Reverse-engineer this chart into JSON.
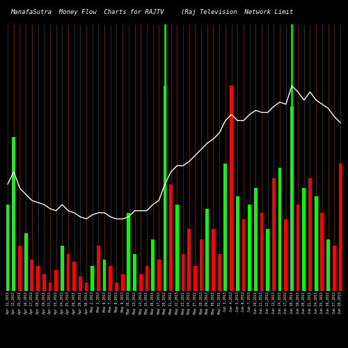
{
  "title_left": "ManafaSutra  Money Flow  Charts for RAJTV",
  "title_right": "(Raj Television  Network Limit",
  "background_color": "#000000",
  "line_color": "#ffffff",
  "green_color": "#00ff00",
  "red_color": "#ff0000",
  "orange_vline_color": "#8B4000",
  "categories": [
    "Apr 11,2013",
    "Apr 12,2013",
    "Apr 15,2013",
    "Apr 16,2013",
    "Apr 17,2013",
    "Apr 18,2013",
    "Apr 19,2013",
    "Apr 22,2013",
    "Apr 23,2013",
    "Apr 24,2013",
    "Apr 25,2013",
    "Apr 26,2013",
    "Apr 29,2013",
    "Apr 30,2013",
    "May 2,2013",
    "May 3,2013",
    "May 6,2013",
    "May 7,2013",
    "May 8,2013",
    "May 9,2013",
    "May 10,2013",
    "May 13,2013",
    "May 14,2013",
    "May 15,2013",
    "May 16,2013",
    "May 17,2013",
    "May 20,2013",
    "May 21,2013",
    "May 22,2013",
    "May 23,2013",
    "May 24,2013",
    "May 27,2013",
    "May 28,2013",
    "May 29,2013",
    "May 30,2013",
    "May 31,2013",
    "Jun 3,2013",
    "Jun 4,2013",
    "Jun 5,2013",
    "Jun 6,2013",
    "Jun 7,2013",
    "Jun 10,2013",
    "Jun 11,2013",
    "Jun 12,2013",
    "Jun 13,2013",
    "Jun 14,2013",
    "Jun 17,2013",
    "Jun 18,2013",
    "Jun 19,2013",
    "Jun 20,2013",
    "Jun 21,2013",
    "Jun 24,2013",
    "Jun 25,2013",
    "Jun 26,2013",
    "Jun 27,2013",
    "Jun 28,2013"
  ],
  "bar_values": [
    42,
    75,
    22,
    28,
    15,
    12,
    8,
    4,
    10,
    22,
    18,
    14,
    7,
    4,
    12,
    22,
    15,
    12,
    4,
    8,
    38,
    18,
    8,
    12,
    25,
    15,
    100,
    52,
    42,
    18,
    30,
    12,
    25,
    40,
    30,
    18,
    62,
    100,
    46,
    35,
    42,
    50,
    38,
    30,
    55,
    60,
    35,
    90,
    42,
    50,
    55,
    46,
    38,
    25,
    22,
    62
  ],
  "bar_colors": [
    "green",
    "green",
    "red",
    "green",
    "red",
    "red",
    "red",
    "red",
    "red",
    "green",
    "red",
    "red",
    "red",
    "red",
    "green",
    "red",
    "green",
    "red",
    "red",
    "red",
    "green",
    "green",
    "red",
    "red",
    "green",
    "red",
    "green",
    "red",
    "green",
    "red",
    "red",
    "red",
    "red",
    "green",
    "red",
    "red",
    "green",
    "red",
    "green",
    "red",
    "green",
    "green",
    "red",
    "green",
    "red",
    "green",
    "red",
    "green",
    "red",
    "green",
    "red",
    "green",
    "red",
    "green",
    "red",
    "red"
  ],
  "line_values": [
    52,
    58,
    50,
    47,
    44,
    43,
    42,
    40,
    39,
    42,
    39,
    38,
    36,
    35,
    37,
    38,
    38,
    36,
    35,
    35,
    36,
    39,
    39,
    39,
    42,
    44,
    52,
    58,
    61,
    61,
    63,
    66,
    69,
    72,
    74,
    77,
    83,
    86,
    83,
    83,
    86,
    88,
    87,
    87,
    90,
    92,
    91,
    100,
    97,
    93,
    97,
    93,
    91,
    89,
    85,
    82
  ],
  "green_vlines": [
    26,
    47
  ],
  "title_fontsize": 6.5,
  "tick_fontsize": 3.5,
  "ylim_max": 130
}
